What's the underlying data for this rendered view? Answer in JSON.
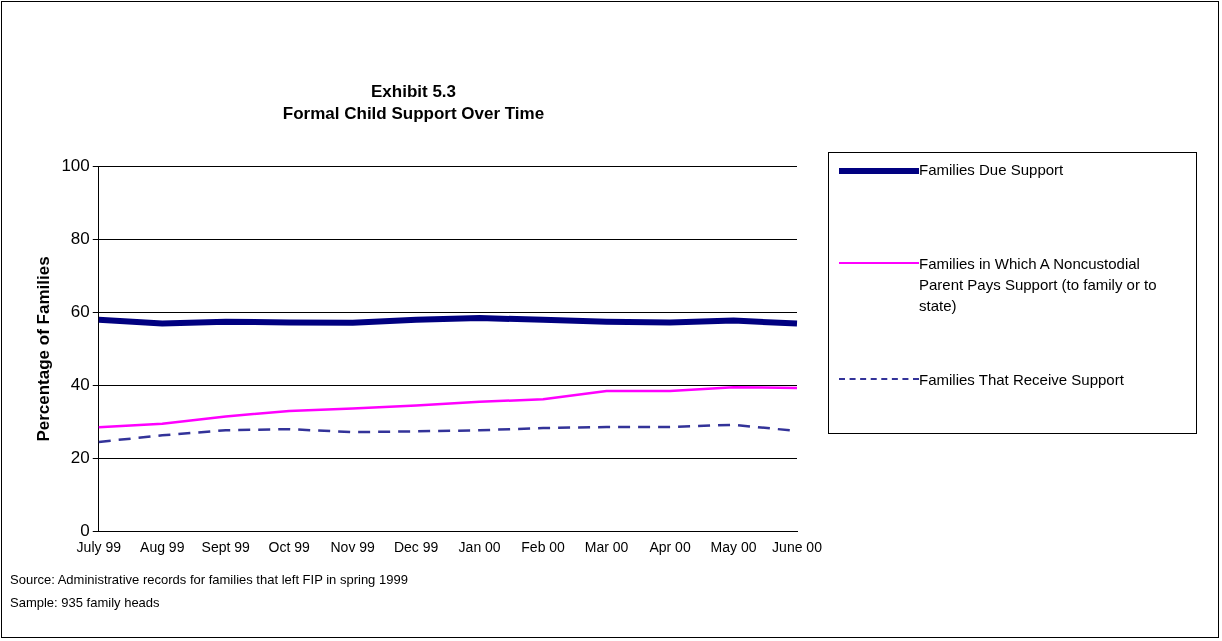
{
  "chart_data": {
    "type": "line",
    "title": "Exhibit 5.3",
    "subtitle": "Formal Child Support Over Time",
    "ylabel": "Percentage of Families",
    "categories": [
      "July 99",
      "Aug 99",
      "Sept 99",
      "Oct 99",
      "Nov 99",
      "Dec 99",
      "Jan 00",
      "Feb 00",
      "Mar 00",
      "Apr 00",
      "May 00",
      "June 00"
    ],
    "series": [
      {
        "name": "Families Due Support",
        "color": "#000080",
        "values": [
          58,
          57,
          57.5,
          57.3,
          57.2,
          58,
          58.5,
          58,
          57.5,
          57.3,
          57.8,
          57
        ],
        "line_style": "solid"
      },
      {
        "name": "Families in Which A Noncustodial Parent Pays Support (to family or to state)",
        "color": "#ff00ff",
        "values": [
          28.5,
          29.5,
          31.5,
          33,
          33.7,
          34.5,
          35.5,
          36.2,
          38.5,
          38.5,
          39.5,
          39.3
        ],
        "line_style": "solid"
      },
      {
        "name": "Families That Receive Support",
        "color": "#333399",
        "values": [
          24.5,
          26.3,
          27.7,
          28,
          27.2,
          27.4,
          27.7,
          28.3,
          28.6,
          28.6,
          29.2,
          27.5
        ],
        "line_style": "dashed"
      }
    ],
    "ylim": [
      0,
      100
    ],
    "yticks": [
      0,
      20,
      40,
      60,
      80,
      100
    ],
    "grid": "y",
    "legend": "right",
    "marker": "none",
    "annotations": [
      "Source:  Administrative records for families that left FIP in spring 1999",
      "Sample: 935 family heads"
    ]
  }
}
